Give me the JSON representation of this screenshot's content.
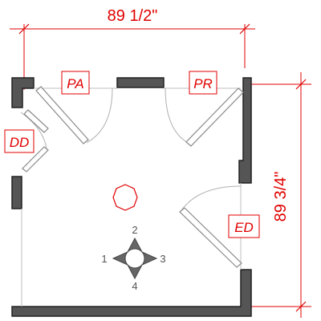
{
  "dimensions": {
    "width_label": "89 1/2\"",
    "height_label": "89 3/4\""
  },
  "door_tags": {
    "pa": "PA",
    "pr": "PR",
    "dd": "DD",
    "ed": "ED"
  },
  "compass": {
    "north": "2",
    "west": "1",
    "east": "3",
    "south": "4"
  },
  "colors": {
    "dimension": "#e00000",
    "wall_fill": "#555555",
    "wall_edge": "#222222",
    "door_leaf": "#888888",
    "swing_arc": "#b0b0b0",
    "compass": "#666666"
  }
}
